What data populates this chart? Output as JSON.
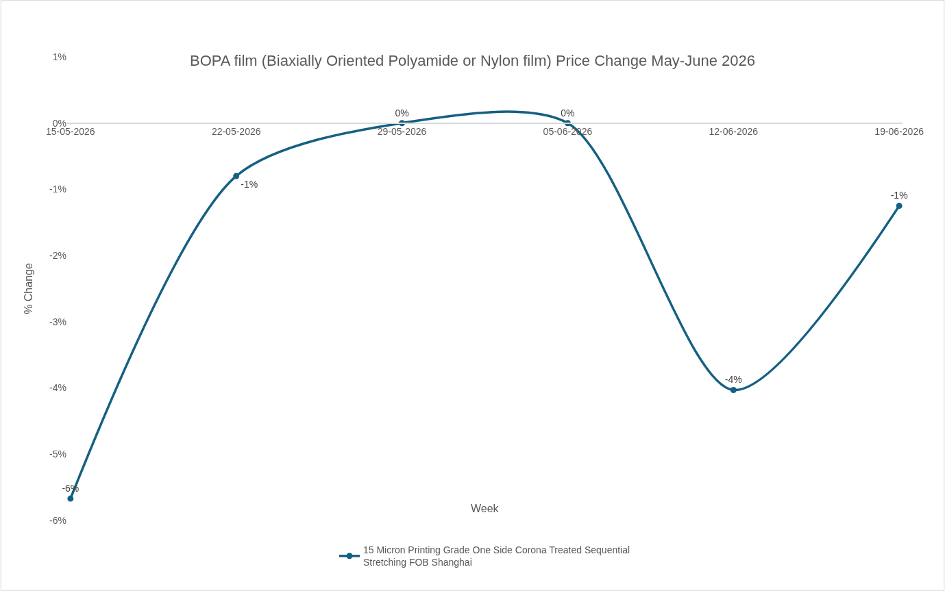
{
  "chart_data": {
    "type": "line",
    "title": "BOPA film (Biaxially Oriented Polyamide or Nylon film) Price Change May-June 2026",
    "xlabel": "Week",
    "ylabel": "% Change",
    "categories": [
      "15-05-2026",
      "22-05-2026",
      "29-05-2026",
      "05-06-2026",
      "12-06-2026",
      "19-06-2026"
    ],
    "series": [
      {
        "name": "15 Micron Printing Grade One Side Corona Treated Sequential Stretching FOB Shanghai",
        "color": "#156082",
        "values": [
          -5.67,
          -0.8,
          0,
          0,
          -4.03,
          -1.25
        ],
        "value_labels": [
          "-6%",
          "-1%",
          "0%",
          "0%",
          "-4%",
          "-1%"
        ]
      }
    ],
    "ylim": [
      -6,
      1
    ],
    "yticks": [
      {
        "value": 1,
        "label": "1%"
      },
      {
        "value": 0,
        "label": "0%"
      },
      {
        "value": -1,
        "label": "-1%"
      },
      {
        "value": -2,
        "label": "-2%"
      },
      {
        "value": -3,
        "label": "-3%"
      },
      {
        "value": -4,
        "label": "-4%"
      },
      {
        "value": -5,
        "label": "-5%"
      },
      {
        "value": -6,
        "label": "-6%"
      }
    ],
    "grid": false,
    "legend": "bottom",
    "marker": "circle",
    "line_style": "solid"
  }
}
